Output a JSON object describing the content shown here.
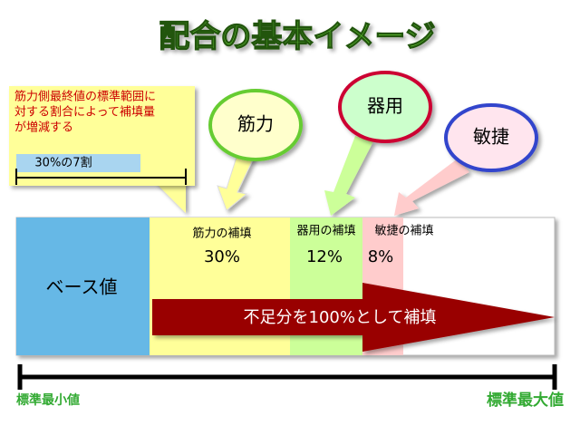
{
  "title": "配合の基本イメージ",
  "callout": {
    "lines": [
      "筋力側最終値の標準範囲に",
      "対する割合によって補填量",
      "が増減する"
    ],
    "bar_label": "30%の7割"
  },
  "bubbles": [
    {
      "label": "筋力"
    },
    {
      "label": "器用"
    },
    {
      "label": "敏捷"
    }
  ],
  "segments": [
    {
      "label": "ベース値"
    },
    {
      "label": "筋力の補填",
      "percent": "30%"
    },
    {
      "label": "器用の補填",
      "percent": "12%"
    },
    {
      "label": "敏捷の補填",
      "percent": "8%"
    }
  ],
  "arrow_label": "不足分を100%として補填",
  "range": {
    "min_label": "標準最小値",
    "max_label": "標準最大値"
  }
}
